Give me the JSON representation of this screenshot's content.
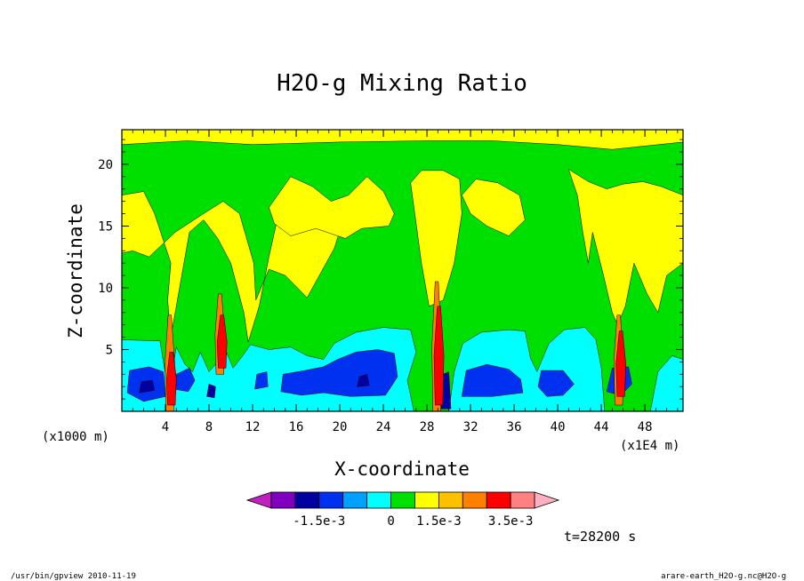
{
  "chart_data": {
    "type": "heatmap",
    "title": "H2O-g Mixing Ratio",
    "xlabel": "X-coordinate",
    "ylabel": "Z-coordinate",
    "x_unit_left": "(x1000 m)",
    "x_unit_right": "(x1E4 m)",
    "xlim": [
      0,
      51.5
    ],
    "ylim": [
      0,
      22.8
    ],
    "x_ticks": [
      4,
      8,
      12,
      16,
      20,
      24,
      28,
      32,
      36,
      40,
      44,
      48
    ],
    "y_ticks": [
      5,
      10,
      15,
      20
    ],
    "time_label": "t=28200 s",
    "colorbar": {
      "colors": [
        "#c020c0",
        "#8000c0",
        "#0000a0",
        "#0030f0",
        "#00a0ff",
        "#00ffff",
        "#00e000",
        "#ffff00",
        "#ffc000",
        "#ff8000",
        "#ff0000",
        "#ff8080",
        "#ffb0c0"
      ],
      "tick_labels": [
        "-1.5e-3",
        "0",
        "1.5e-3",
        "3.5e-3"
      ],
      "tick_after_index": [
        3,
        6,
        8,
        11
      ]
    },
    "field_levels": {
      "background": "#00e000",
      "upper_yellow": "#ffff00",
      "lower_cyan": "#00ffff",
      "lower_blue": "#0030f0",
      "deep_blue": "#0000a0",
      "plume_orange": "#ff8000",
      "plume_red": "#ff0000"
    }
  },
  "footer": {
    "left": "/usr/bin/gpview  2010-11-19",
    "right": "arare-earth_H2O-g.nc@H2O-g"
  }
}
